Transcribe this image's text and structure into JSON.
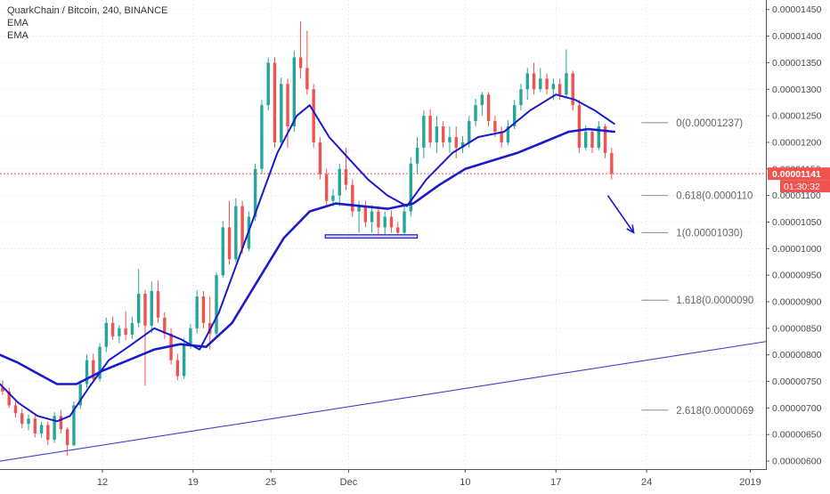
{
  "legend": {
    "title": "QuarkChain / Bitcoin, 240, BINANCE",
    "indicators": [
      "EMA",
      "EMA"
    ]
  },
  "colors": {
    "up": "#26a69a",
    "down": "#ef5350",
    "ema": "#1a1acc",
    "trend": "#3f3fcf",
    "price_line": "#ef5350",
    "fib": "#8c8c8c",
    "axis_text": "#4a4a4a",
    "grid": "#e3e3e3"
  },
  "chart_data": {
    "type": "candlestick",
    "x_ticks": [
      {
        "label": "12",
        "t": 6
      },
      {
        "label": "19",
        "t": 13
      },
      {
        "label": "25",
        "t": 19
      },
      {
        "label": "Dec",
        "t": 25
      },
      {
        "label": "10",
        "t": 34
      },
      {
        "label": "17",
        "t": 41
      },
      {
        "label": "24",
        "t": 48
      },
      {
        "label": "2019",
        "t": 56
      }
    ],
    "x_range": [
      -1.9,
      57.2
    ],
    "ylim": [
      5.85e-06,
      1.468e-05
    ],
    "y_ticks": [
      "0.00000600",
      "0.00000650",
      "0.00000700",
      "0.00000750",
      "0.00000800",
      "0.00000850",
      "0.00000900",
      "0.00000950",
      "0.00001000",
      "0.00001050",
      "0.00001100",
      "0.00001150",
      "0.00001200",
      "0.00001250",
      "0.00001300",
      "0.00001350",
      "0.00001400",
      "0.00001450"
    ],
    "current_price": {
      "label": "0.00001141",
      "value": 1.141e-05,
      "timer": "01:30:32"
    },
    "candles": [
      {
        "t": -1.7,
        "o": 7.4,
        "h": 7.52,
        "l": 7.24,
        "c": 7.31
      },
      {
        "t": -1.2,
        "o": 7.31,
        "h": 7.39,
        "l": 7.0,
        "c": 7.05
      },
      {
        "t": -0.7,
        "o": 7.05,
        "h": 7.12,
        "l": 6.82,
        "c": 6.9
      },
      {
        "t": -0.2,
        "o": 6.9,
        "h": 6.98,
        "l": 6.62,
        "c": 6.7
      },
      {
        "t": 0.3,
        "o": 6.7,
        "h": 6.88,
        "l": 6.58,
        "c": 6.8
      },
      {
        "t": 0.8,
        "o": 6.8,
        "h": 6.86,
        "l": 6.45,
        "c": 6.52
      },
      {
        "t": 1.3,
        "o": 6.52,
        "h": 6.74,
        "l": 6.44,
        "c": 6.68
      },
      {
        "t": 1.8,
        "o": 6.68,
        "h": 6.75,
        "l": 6.3,
        "c": 6.4
      },
      {
        "t": 2.3,
        "o": 6.4,
        "h": 6.92,
        "l": 6.34,
        "c": 6.85
      },
      {
        "t": 2.8,
        "o": 6.85,
        "h": 6.96,
        "l": 6.52,
        "c": 6.6
      },
      {
        "t": 3.3,
        "o": 6.6,
        "h": 6.64,
        "l": 6.1,
        "c": 6.3
      },
      {
        "t": 3.8,
        "o": 6.3,
        "h": 7.12,
        "l": 6.28,
        "c": 7.05
      },
      {
        "t": 4.3,
        "o": 7.05,
        "h": 7.52,
        "l": 6.98,
        "c": 7.45
      },
      {
        "t": 4.8,
        "o": 7.45,
        "h": 8.0,
        "l": 7.38,
        "c": 7.9
      },
      {
        "t": 5.3,
        "o": 7.9,
        "h": 8.02,
        "l": 7.48,
        "c": 7.55
      },
      {
        "t": 5.8,
        "o": 7.55,
        "h": 8.22,
        "l": 7.5,
        "c": 8.15
      },
      {
        "t": 6.3,
        "o": 8.15,
        "h": 8.7,
        "l": 8.05,
        "c": 8.6
      },
      {
        "t": 6.8,
        "o": 8.6,
        "h": 8.72,
        "l": 8.28,
        "c": 8.35
      },
      {
        "t": 7.3,
        "o": 8.35,
        "h": 8.56,
        "l": 8.22,
        "c": 8.5
      },
      {
        "t": 7.8,
        "o": 8.5,
        "h": 8.82,
        "l": 8.28,
        "c": 8.38
      },
      {
        "t": 8.3,
        "o": 8.38,
        "h": 8.72,
        "l": 8.3,
        "c": 8.6
      },
      {
        "t": 8.8,
        "o": 8.6,
        "h": 9.62,
        "l": 8.52,
        "c": 9.15
      },
      {
        "t": 9.3,
        "o": 9.15,
        "h": 9.22,
        "l": 7.42,
        "c": 8.55
      },
      {
        "t": 9.8,
        "o": 8.55,
        "h": 9.38,
        "l": 8.42,
        "c": 9.2
      },
      {
        "t": 10.3,
        "o": 9.2,
        "h": 9.4,
        "l": 8.6,
        "c": 8.7
      },
      {
        "t": 10.8,
        "o": 8.7,
        "h": 8.8,
        "l": 8.3,
        "c": 8.4
      },
      {
        "t": 11.3,
        "o": 8.4,
        "h": 8.5,
        "l": 7.82,
        "c": 7.9
      },
      {
        "t": 11.8,
        "o": 7.9,
        "h": 8.02,
        "l": 7.52,
        "c": 7.6
      },
      {
        "t": 12.3,
        "o": 7.6,
        "h": 8.32,
        "l": 7.55,
        "c": 8.2
      },
      {
        "t": 12.8,
        "o": 8.2,
        "h": 8.58,
        "l": 8.12,
        "c": 8.5
      },
      {
        "t": 13.3,
        "o": 8.5,
        "h": 9.22,
        "l": 8.4,
        "c": 9.1
      },
      {
        "t": 13.8,
        "o": 9.1,
        "h": 9.2,
        "l": 8.5,
        "c": 8.6
      },
      {
        "t": 14.3,
        "o": 8.6,
        "h": 9.1,
        "l": 8.1,
        "c": 8.4
      },
      {
        "t": 14.8,
        "o": 8.4,
        "h": 9.55,
        "l": 8.35,
        "c": 9.5
      },
      {
        "t": 15.3,
        "o": 9.5,
        "h": 10.52,
        "l": 9.45,
        "c": 10.4
      },
      {
        "t": 15.8,
        "o": 10.4,
        "h": 10.9,
        "l": 9.7,
        "c": 9.8
      },
      {
        "t": 16.3,
        "o": 9.8,
        "h": 10.95,
        "l": 9.75,
        "c": 10.8
      },
      {
        "t": 16.8,
        "o": 10.8,
        "h": 10.9,
        "l": 9.9,
        "c": 10.0
      },
      {
        "t": 17.3,
        "o": 10.0,
        "h": 10.7,
        "l": 9.95,
        "c": 10.6
      },
      {
        "t": 17.8,
        "o": 10.6,
        "h": 11.6,
        "l": 10.52,
        "c": 11.5
      },
      {
        "t": 18.3,
        "o": 11.5,
        "h": 12.8,
        "l": 11.4,
        "c": 12.7
      },
      {
        "t": 18.8,
        "o": 12.7,
        "h": 13.6,
        "l": 12.6,
        "c": 13.5
      },
      {
        "t": 19.3,
        "o": 13.5,
        "h": 13.6,
        "l": 11.9,
        "c": 12.0
      },
      {
        "t": 19.8,
        "o": 12.0,
        "h": 13.22,
        "l": 11.9,
        "c": 13.1
      },
      {
        "t": 20.3,
        "o": 13.1,
        "h": 13.2,
        "l": 11.9,
        "c": 12.3
      },
      {
        "t": 20.8,
        "o": 12.3,
        "h": 13.72,
        "l": 12.2,
        "c": 13.6
      },
      {
        "t": 21.3,
        "o": 13.6,
        "h": 14.28,
        "l": 13.2,
        "c": 13.4
      },
      {
        "t": 21.8,
        "o": 13.4,
        "h": 14.1,
        "l": 12.9,
        "c": 13.0
      },
      {
        "t": 22.3,
        "o": 13.0,
        "h": 13.1,
        "l": 11.9,
        "c": 12.0
      },
      {
        "t": 22.8,
        "o": 12.0,
        "h": 12.1,
        "l": 11.3,
        "c": 11.4
      },
      {
        "t": 23.3,
        "o": 11.4,
        "h": 11.5,
        "l": 10.8,
        "c": 10.9
      },
      {
        "t": 23.8,
        "o": 10.9,
        "h": 11.12,
        "l": 10.8,
        "c": 11.0
      },
      {
        "t": 24.3,
        "o": 11.0,
        "h": 11.6,
        "l": 10.8,
        "c": 11.5
      },
      {
        "t": 24.8,
        "o": 11.5,
        "h": 11.9,
        "l": 11.1,
        "c": 11.2
      },
      {
        "t": 25.3,
        "o": 11.2,
        "h": 11.3,
        "l": 10.6,
        "c": 10.7
      },
      {
        "t": 25.8,
        "o": 10.7,
        "h": 10.9,
        "l": 10.3,
        "c": 10.8
      },
      {
        "t": 26.3,
        "o": 10.8,
        "h": 10.9,
        "l": 10.4,
        "c": 10.5
      },
      {
        "t": 26.8,
        "o": 10.5,
        "h": 10.82,
        "l": 10.3,
        "c": 10.7
      },
      {
        "t": 27.3,
        "o": 10.7,
        "h": 10.8,
        "l": 10.25,
        "c": 10.4
      },
      {
        "t": 27.8,
        "o": 10.4,
        "h": 10.7,
        "l": 10.25,
        "c": 10.6
      },
      {
        "t": 28.3,
        "o": 10.6,
        "h": 10.72,
        "l": 10.3,
        "c": 10.4
      },
      {
        "t": 28.8,
        "o": 10.4,
        "h": 10.5,
        "l": 10.25,
        "c": 10.3
      },
      {
        "t": 29.3,
        "o": 10.3,
        "h": 10.82,
        "l": 10.25,
        "c": 10.7
      },
      {
        "t": 29.8,
        "o": 10.7,
        "h": 11.72,
        "l": 10.6,
        "c": 11.6
      },
      {
        "t": 30.3,
        "o": 11.6,
        "h": 12.1,
        "l": 11.4,
        "c": 11.9
      },
      {
        "t": 30.8,
        "o": 11.9,
        "h": 12.6,
        "l": 11.7,
        "c": 12.5
      },
      {
        "t": 31.3,
        "o": 12.5,
        "h": 12.62,
        "l": 11.9,
        "c": 12.0
      },
      {
        "t": 31.8,
        "o": 12.0,
        "h": 12.5,
        "l": 11.8,
        "c": 12.3
      },
      {
        "t": 32.3,
        "o": 12.3,
        "h": 12.4,
        "l": 11.9,
        "c": 12.0
      },
      {
        "t": 32.8,
        "o": 12.0,
        "h": 12.3,
        "l": 11.8,
        "c": 12.1
      },
      {
        "t": 33.3,
        "o": 12.1,
        "h": 12.3,
        "l": 11.7,
        "c": 11.9
      },
      {
        "t": 33.8,
        "o": 11.9,
        "h": 12.12,
        "l": 11.8,
        "c": 12.0
      },
      {
        "t": 34.3,
        "o": 12.0,
        "h": 12.5,
        "l": 11.9,
        "c": 12.4
      },
      {
        "t": 34.8,
        "o": 12.4,
        "h": 12.82,
        "l": 12.3,
        "c": 12.7
      },
      {
        "t": 35.3,
        "o": 12.7,
        "h": 12.95,
        "l": 12.5,
        "c": 12.9
      },
      {
        "t": 35.8,
        "o": 12.9,
        "h": 12.95,
        "l": 12.3,
        "c": 12.4
      },
      {
        "t": 36.3,
        "o": 12.4,
        "h": 12.5,
        "l": 12.1,
        "c": 12.2
      },
      {
        "t": 36.8,
        "o": 12.2,
        "h": 12.3,
        "l": 11.9,
        "c": 12.0
      },
      {
        "t": 37.3,
        "o": 12.0,
        "h": 12.42,
        "l": 11.95,
        "c": 12.3
      },
      {
        "t": 37.8,
        "o": 12.3,
        "h": 12.8,
        "l": 12.25,
        "c": 12.7
      },
      {
        "t": 38.3,
        "o": 12.7,
        "h": 13.1,
        "l": 12.6,
        "c": 13.0
      },
      {
        "t": 38.8,
        "o": 13.0,
        "h": 13.4,
        "l": 12.8,
        "c": 13.3
      },
      {
        "t": 39.3,
        "o": 13.3,
        "h": 13.5,
        "l": 12.9,
        "c": 13.0
      },
      {
        "t": 39.8,
        "o": 13.0,
        "h": 13.4,
        "l": 12.95,
        "c": 13.2
      },
      {
        "t": 40.3,
        "o": 13.2,
        "h": 13.3,
        "l": 12.9,
        "c": 13.0
      },
      {
        "t": 40.8,
        "o": 13.0,
        "h": 13.2,
        "l": 12.8,
        "c": 13.1
      },
      {
        "t": 41.3,
        "o": 13.1,
        "h": 13.2,
        "l": 12.8,
        "c": 12.9
      },
      {
        "t": 41.8,
        "o": 12.9,
        "h": 13.75,
        "l": 12.85,
        "c": 13.3
      },
      {
        "t": 42.3,
        "o": 13.3,
        "h": 13.35,
        "l": 12.6,
        "c": 12.7
      },
      {
        "t": 42.8,
        "o": 12.7,
        "h": 12.8,
        "l": 11.8,
        "c": 11.9
      },
      {
        "t": 43.3,
        "o": 11.9,
        "h": 12.32,
        "l": 11.85,
        "c": 12.2
      },
      {
        "t": 43.8,
        "o": 12.2,
        "h": 12.25,
        "l": 11.8,
        "c": 11.9
      },
      {
        "t": 44.3,
        "o": 11.9,
        "h": 12.4,
        "l": 11.85,
        "c": 12.3
      },
      {
        "t": 44.8,
        "o": 12.3,
        "h": 12.35,
        "l": 11.7,
        "c": 11.8
      },
      {
        "t": 45.3,
        "o": 11.8,
        "h": 11.9,
        "l": 11.3,
        "c": 11.41
      }
    ],
    "ema_fast": [
      {
        "t": -1.9,
        "v": 7.45
      },
      {
        "t": -0.5,
        "v": 7.1
      },
      {
        "t": 1.0,
        "v": 6.85
      },
      {
        "t": 2.5,
        "v": 6.75
      },
      {
        "t": 3.5,
        "v": 6.85
      },
      {
        "t": 5.0,
        "v": 7.4
      },
      {
        "t": 6.5,
        "v": 7.9
      },
      {
        "t": 8.0,
        "v": 8.15
      },
      {
        "t": 10.0,
        "v": 8.5
      },
      {
        "t": 12.0,
        "v": 8.3
      },
      {
        "t": 13.5,
        "v": 8.1
      },
      {
        "t": 15.0,
        "v": 8.8
      },
      {
        "t": 16.5,
        "v": 9.8
      },
      {
        "t": 18.0,
        "v": 10.8
      },
      {
        "t": 19.5,
        "v": 11.8
      },
      {
        "t": 21.0,
        "v": 12.5
      },
      {
        "t": 22.0,
        "v": 12.7
      },
      {
        "t": 23.5,
        "v": 12.1
      },
      {
        "t": 25.0,
        "v": 11.7
      },
      {
        "t": 26.5,
        "v": 11.3
      },
      {
        "t": 28.0,
        "v": 11.0
      },
      {
        "t": 29.5,
        "v": 10.8
      },
      {
        "t": 31.0,
        "v": 11.3
      },
      {
        "t": 33.0,
        "v": 11.8
      },
      {
        "t": 35.0,
        "v": 12.1
      },
      {
        "t": 37.0,
        "v": 12.2
      },
      {
        "t": 39.0,
        "v": 12.6
      },
      {
        "t": 41.0,
        "v": 12.9
      },
      {
        "t": 42.5,
        "v": 12.8
      },
      {
        "t": 44.0,
        "v": 12.6
      },
      {
        "t": 45.5,
        "v": 12.35
      }
    ],
    "ema_slow": [
      {
        "t": -1.9,
        "v": 8.0
      },
      {
        "t": -0.5,
        "v": 7.85
      },
      {
        "t": 1.0,
        "v": 7.65
      },
      {
        "t": 2.5,
        "v": 7.45
      },
      {
        "t": 4.0,
        "v": 7.45
      },
      {
        "t": 6.0,
        "v": 7.7
      },
      {
        "t": 8.0,
        "v": 7.9
      },
      {
        "t": 10.0,
        "v": 8.1
      },
      {
        "t": 12.0,
        "v": 8.2
      },
      {
        "t": 14.0,
        "v": 8.15
      },
      {
        "t": 16.0,
        "v": 8.6
      },
      {
        "t": 18.0,
        "v": 9.4
      },
      {
        "t": 20.0,
        "v": 10.2
      },
      {
        "t": 22.0,
        "v": 10.7
      },
      {
        "t": 24.0,
        "v": 10.85
      },
      {
        "t": 26.0,
        "v": 10.8
      },
      {
        "t": 28.0,
        "v": 10.75
      },
      {
        "t": 30.0,
        "v": 10.85
      },
      {
        "t": 32.0,
        "v": 11.2
      },
      {
        "t": 34.0,
        "v": 11.5
      },
      {
        "t": 36.0,
        "v": 11.65
      },
      {
        "t": 38.0,
        "v": 11.8
      },
      {
        "t": 40.0,
        "v": 12.0
      },
      {
        "t": 42.0,
        "v": 12.2
      },
      {
        "t": 43.5,
        "v": 12.25
      },
      {
        "t": 45.5,
        "v": 12.2
      }
    ],
    "trend_line": [
      {
        "t": -1.9,
        "v": 6.0
      },
      {
        "t": 57.2,
        "v": 8.25
      }
    ],
    "support_box": {
      "t1": 23.2,
      "t2": 30.3,
      "v1": 10.2,
      "v2": 10.26
    },
    "projection_arrow": [
      {
        "t": 45.0,
        "v": 11.0
      },
      {
        "t": 47.0,
        "v": 10.3
      }
    ],
    "fib_levels": [
      {
        "label": "0(0.00001237)",
        "value": 12.37
      },
      {
        "label": "0.618(0.0000110",
        "value": 11.0
      },
      {
        "label": "1(0.00001030)",
        "value": 10.3
      },
      {
        "label": "1.618(0.0000090",
        "value": 9.03
      },
      {
        "label": "2.618(0.0000069",
        "value": 6.96
      }
    ],
    "fib_t_start": 47.6,
    "units_multiplier": 1e-06
  }
}
